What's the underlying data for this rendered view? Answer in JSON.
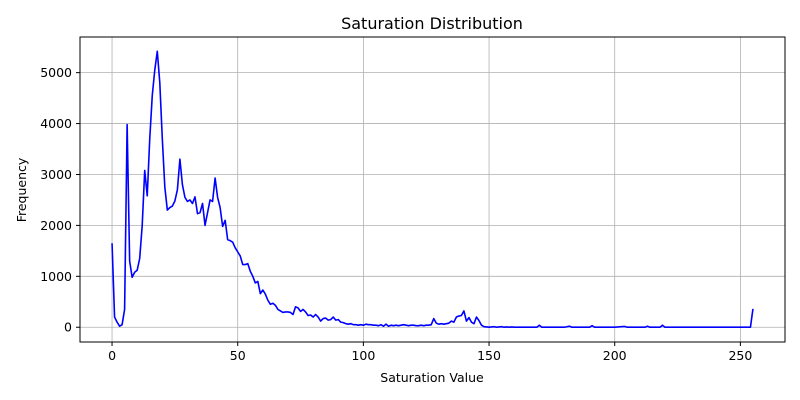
{
  "chart_data": {
    "type": "line",
    "title": "Saturation Distribution",
    "xlabel": "Saturation Value",
    "ylabel": "Frequency",
    "xlim": [
      -12.75,
      267.75
    ],
    "ylim": [
      -290,
      5700
    ],
    "xticks": [
      0,
      50,
      100,
      150,
      200,
      250
    ],
    "yticks": [
      0,
      1000,
      2000,
      3000,
      4000,
      5000
    ],
    "grid": true,
    "legend": "none",
    "series": [
      {
        "color": "#0000ff",
        "points": [
          [
            0,
            1650
          ],
          [
            1,
            200
          ],
          [
            2,
            100
          ],
          [
            3,
            20
          ],
          [
            4,
            50
          ],
          [
            5,
            350
          ],
          [
            6,
            3980
          ],
          [
            7,
            1300
          ],
          [
            8,
            980
          ],
          [
            9,
            1080
          ],
          [
            10,
            1120
          ],
          [
            11,
            1350
          ],
          [
            12,
            2000
          ],
          [
            13,
            3080
          ],
          [
            14,
            2580
          ],
          [
            15,
            3700
          ],
          [
            16,
            4550
          ],
          [
            17,
            5050
          ],
          [
            18,
            5420
          ],
          [
            19,
            4800
          ],
          [
            20,
            3700
          ],
          [
            21,
            2750
          ],
          [
            22,
            2300
          ],
          [
            23,
            2350
          ],
          [
            24,
            2380
          ],
          [
            25,
            2480
          ],
          [
            26,
            2700
          ],
          [
            27,
            3300
          ],
          [
            28,
            2800
          ],
          [
            29,
            2550
          ],
          [
            30,
            2470
          ],
          [
            31,
            2500
          ],
          [
            32,
            2430
          ],
          [
            33,
            2560
          ],
          [
            34,
            2230
          ],
          [
            35,
            2250
          ],
          [
            36,
            2430
          ],
          [
            37,
            2000
          ],
          [
            38,
            2250
          ],
          [
            39,
            2500
          ],
          [
            40,
            2470
          ],
          [
            41,
            2930
          ],
          [
            42,
            2550
          ],
          [
            43,
            2350
          ],
          [
            44,
            1980
          ],
          [
            45,
            2100
          ],
          [
            46,
            1720
          ],
          [
            47,
            1700
          ],
          [
            48,
            1670
          ],
          [
            49,
            1560
          ],
          [
            50,
            1480
          ],
          [
            51,
            1400
          ],
          [
            52,
            1230
          ],
          [
            53,
            1230
          ],
          [
            54,
            1250
          ],
          [
            55,
            1100
          ],
          [
            56,
            1000
          ],
          [
            57,
            870
          ],
          [
            58,
            900
          ],
          [
            59,
            660
          ],
          [
            60,
            730
          ],
          [
            61,
            650
          ],
          [
            62,
            530
          ],
          [
            63,
            450
          ],
          [
            64,
            470
          ],
          [
            65,
            430
          ],
          [
            66,
            350
          ],
          [
            67,
            320
          ],
          [
            68,
            290
          ],
          [
            69,
            300
          ],
          [
            70,
            300
          ],
          [
            71,
            290
          ],
          [
            72,
            250
          ],
          [
            73,
            400
          ],
          [
            74,
            380
          ],
          [
            75,
            310
          ],
          [
            76,
            350
          ],
          [
            77,
            300
          ],
          [
            78,
            230
          ],
          [
            79,
            240
          ],
          [
            80,
            200
          ],
          [
            81,
            250
          ],
          [
            82,
            200
          ],
          [
            83,
            120
          ],
          [
            84,
            170
          ],
          [
            85,
            180
          ],
          [
            86,
            140
          ],
          [
            87,
            150
          ],
          [
            88,
            200
          ],
          [
            89,
            140
          ],
          [
            90,
            150
          ],
          [
            91,
            100
          ],
          [
            92,
            90
          ],
          [
            93,
            70
          ],
          [
            94,
            60
          ],
          [
            95,
            70
          ],
          [
            96,
            50
          ],
          [
            97,
            50
          ],
          [
            98,
            40
          ],
          [
            99,
            50
          ],
          [
            100,
            40
          ],
          [
            101,
            60
          ],
          [
            102,
            50
          ],
          [
            103,
            50
          ],
          [
            104,
            40
          ],
          [
            105,
            40
          ],
          [
            106,
            30
          ],
          [
            107,
            50
          ],
          [
            108,
            20
          ],
          [
            109,
            60
          ],
          [
            110,
            20
          ],
          [
            111,
            40
          ],
          [
            112,
            30
          ],
          [
            113,
            40
          ],
          [
            114,
            30
          ],
          [
            115,
            40
          ],
          [
            116,
            50
          ],
          [
            117,
            40
          ],
          [
            118,
            30
          ],
          [
            119,
            40
          ],
          [
            120,
            40
          ],
          [
            121,
            30
          ],
          [
            122,
            30
          ],
          [
            123,
            40
          ],
          [
            124,
            30
          ],
          [
            125,
            40
          ],
          [
            126,
            40
          ],
          [
            127,
            50
          ],
          [
            128,
            170
          ],
          [
            129,
            80
          ],
          [
            130,
            60
          ],
          [
            131,
            70
          ],
          [
            132,
            60
          ],
          [
            133,
            70
          ],
          [
            134,
            80
          ],
          [
            135,
            120
          ],
          [
            136,
            100
          ],
          [
            137,
            200
          ],
          [
            138,
            220
          ],
          [
            139,
            230
          ],
          [
            140,
            320
          ],
          [
            141,
            120
          ],
          [
            142,
            190
          ],
          [
            143,
            100
          ],
          [
            144,
            70
          ],
          [
            145,
            200
          ],
          [
            146,
            130
          ],
          [
            147,
            40
          ],
          [
            148,
            10
          ],
          [
            149,
            5
          ],
          [
            150,
            0
          ],
          [
            151,
            5
          ],
          [
            152,
            10
          ],
          [
            153,
            0
          ],
          [
            154,
            5
          ],
          [
            155,
            10
          ],
          [
            156,
            0
          ],
          [
            157,
            5
          ],
          [
            158,
            0
          ],
          [
            159,
            5
          ],
          [
            160,
            0
          ],
          [
            165,
            0
          ],
          [
            169,
            0
          ],
          [
            170,
            40
          ],
          [
            171,
            0
          ],
          [
            175,
            0
          ],
          [
            180,
            0
          ],
          [
            182,
            20
          ],
          [
            183,
            0
          ],
          [
            190,
            0
          ],
          [
            191,
            30
          ],
          [
            192,
            0
          ],
          [
            200,
            0
          ],
          [
            204,
            15
          ],
          [
            205,
            0
          ],
          [
            212,
            0
          ],
          [
            213,
            20
          ],
          [
            214,
            0
          ],
          [
            218,
            0
          ],
          [
            219,
            40
          ],
          [
            220,
            0
          ],
          [
            225,
            0
          ],
          [
            230,
            0
          ],
          [
            235,
            0
          ],
          [
            240,
            0
          ],
          [
            245,
            0
          ],
          [
            250,
            0
          ],
          [
            254,
            0
          ],
          [
            255,
            360
          ]
        ]
      }
    ]
  }
}
